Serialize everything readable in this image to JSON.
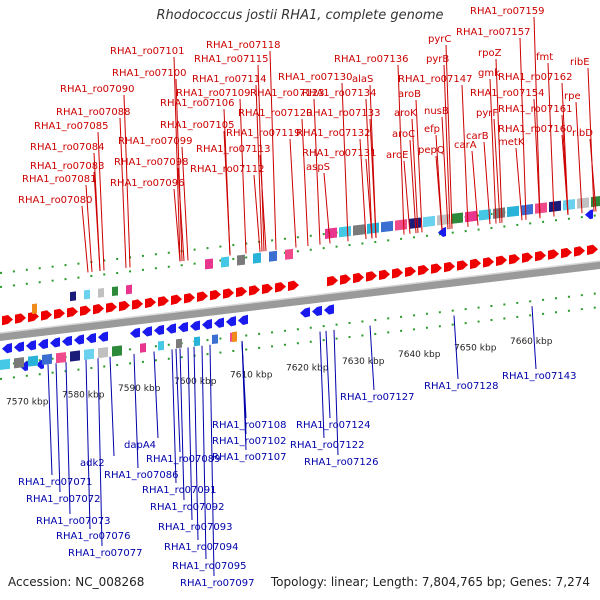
{
  "header": {
    "title": "Rhodococcus jostii RHA1, complete genome"
  },
  "footer": {
    "accession": "Accession: NC_008268",
    "summary": "Topology: linear; Length: 7,804,765 bp; Genes: 7,274"
  },
  "axis": {
    "unit": "kbp",
    "ticks": [
      {
        "label": "7570 kbp"
      },
      {
        "label": "7580 kbp"
      },
      {
        "label": "7590 kbp"
      },
      {
        "label": "7600 kbp"
      },
      {
        "label": "7610 kbp"
      },
      {
        "label": "7620 kbp"
      },
      {
        "label": "7630 kbp"
      },
      {
        "label": "7640 kbp"
      },
      {
        "label": "7650 kbp"
      },
      {
        "label": "7660 kbp"
      }
    ]
  },
  "colors": {
    "top_strand_labels": "#cc0000",
    "bottom_strand_labels": "#0000aa",
    "forward_genes": "#ee0000",
    "reverse_genes": "#1a1aee"
  },
  "top_labels": [
    "RHA1_ro07080",
    "RHA1_ro07081",
    "RHA1_ro07083",
    "RHA1_ro07084",
    "RHA1_ro07085",
    "RHA1_ro07088",
    "RHA1_ro07090",
    "RHA1_ro07096",
    "RHA1_ro07098",
    "RHA1_ro07099",
    "RHA1_ro07100",
    "RHA1_ro07101",
    "RHA1_ro07105",
    "RHA1_ro07106",
    "RHA1_ro07109",
    "RHA1_ro07112",
    "RHA1_ro07113",
    "RHA1_ro07114",
    "RHA1_ro07115",
    "RHA1_ro07118",
    "RHA1_ro07119",
    "RHA1_ro07120",
    "RHA1_ro07123",
    "RHA1_ro07130",
    "RHA1_ro07131",
    "RHA1_ro07132",
    "RHA1_ro07133",
    "RHA1_ro07134",
    "RHA1_ro07136",
    "aspS",
    "alaS",
    "aroE",
    "aroC",
    "aroK",
    "aroB",
    "pepQ",
    "efp",
    "nusB",
    "pyrB",
    "pyrC",
    "RHA1_ro07147",
    "carA",
    "carB",
    "pyrF",
    "gmk",
    "rpoZ",
    "RHA1_ro07154",
    "RHA1_ro07157",
    "RHA1_ro07159",
    "metK",
    "fmt",
    "RHA1_ro07160",
    "RHA1_ro07161",
    "RHA1_ro07162",
    "rpe",
    "ribE",
    "ribD"
  ],
  "bottom_labels": [
    "RHA1_ro07071",
    "RHA1_ro07072",
    "RHA1_ro07073",
    "RHA1_ro07076",
    "RHA1_ro07077",
    "adk2",
    "dapA4",
    "RHA1_ro07086",
    "RHA1_ro07089",
    "RHA1_ro07091",
    "RHA1_ro07092",
    "RHA1_ro07093",
    "RHA1_ro07094",
    "RHA1_ro07095",
    "RHA1_ro07097",
    "RHA1_ro07102",
    "RHA1_ro07107",
    "RHA1_ro07108",
    "RHA1_ro07122",
    "RHA1_ro07124",
    "RHA1_ro07126",
    "RHA1_ro07127",
    "RHA1_ro07128",
    "RHA1_ro07143"
  ]
}
